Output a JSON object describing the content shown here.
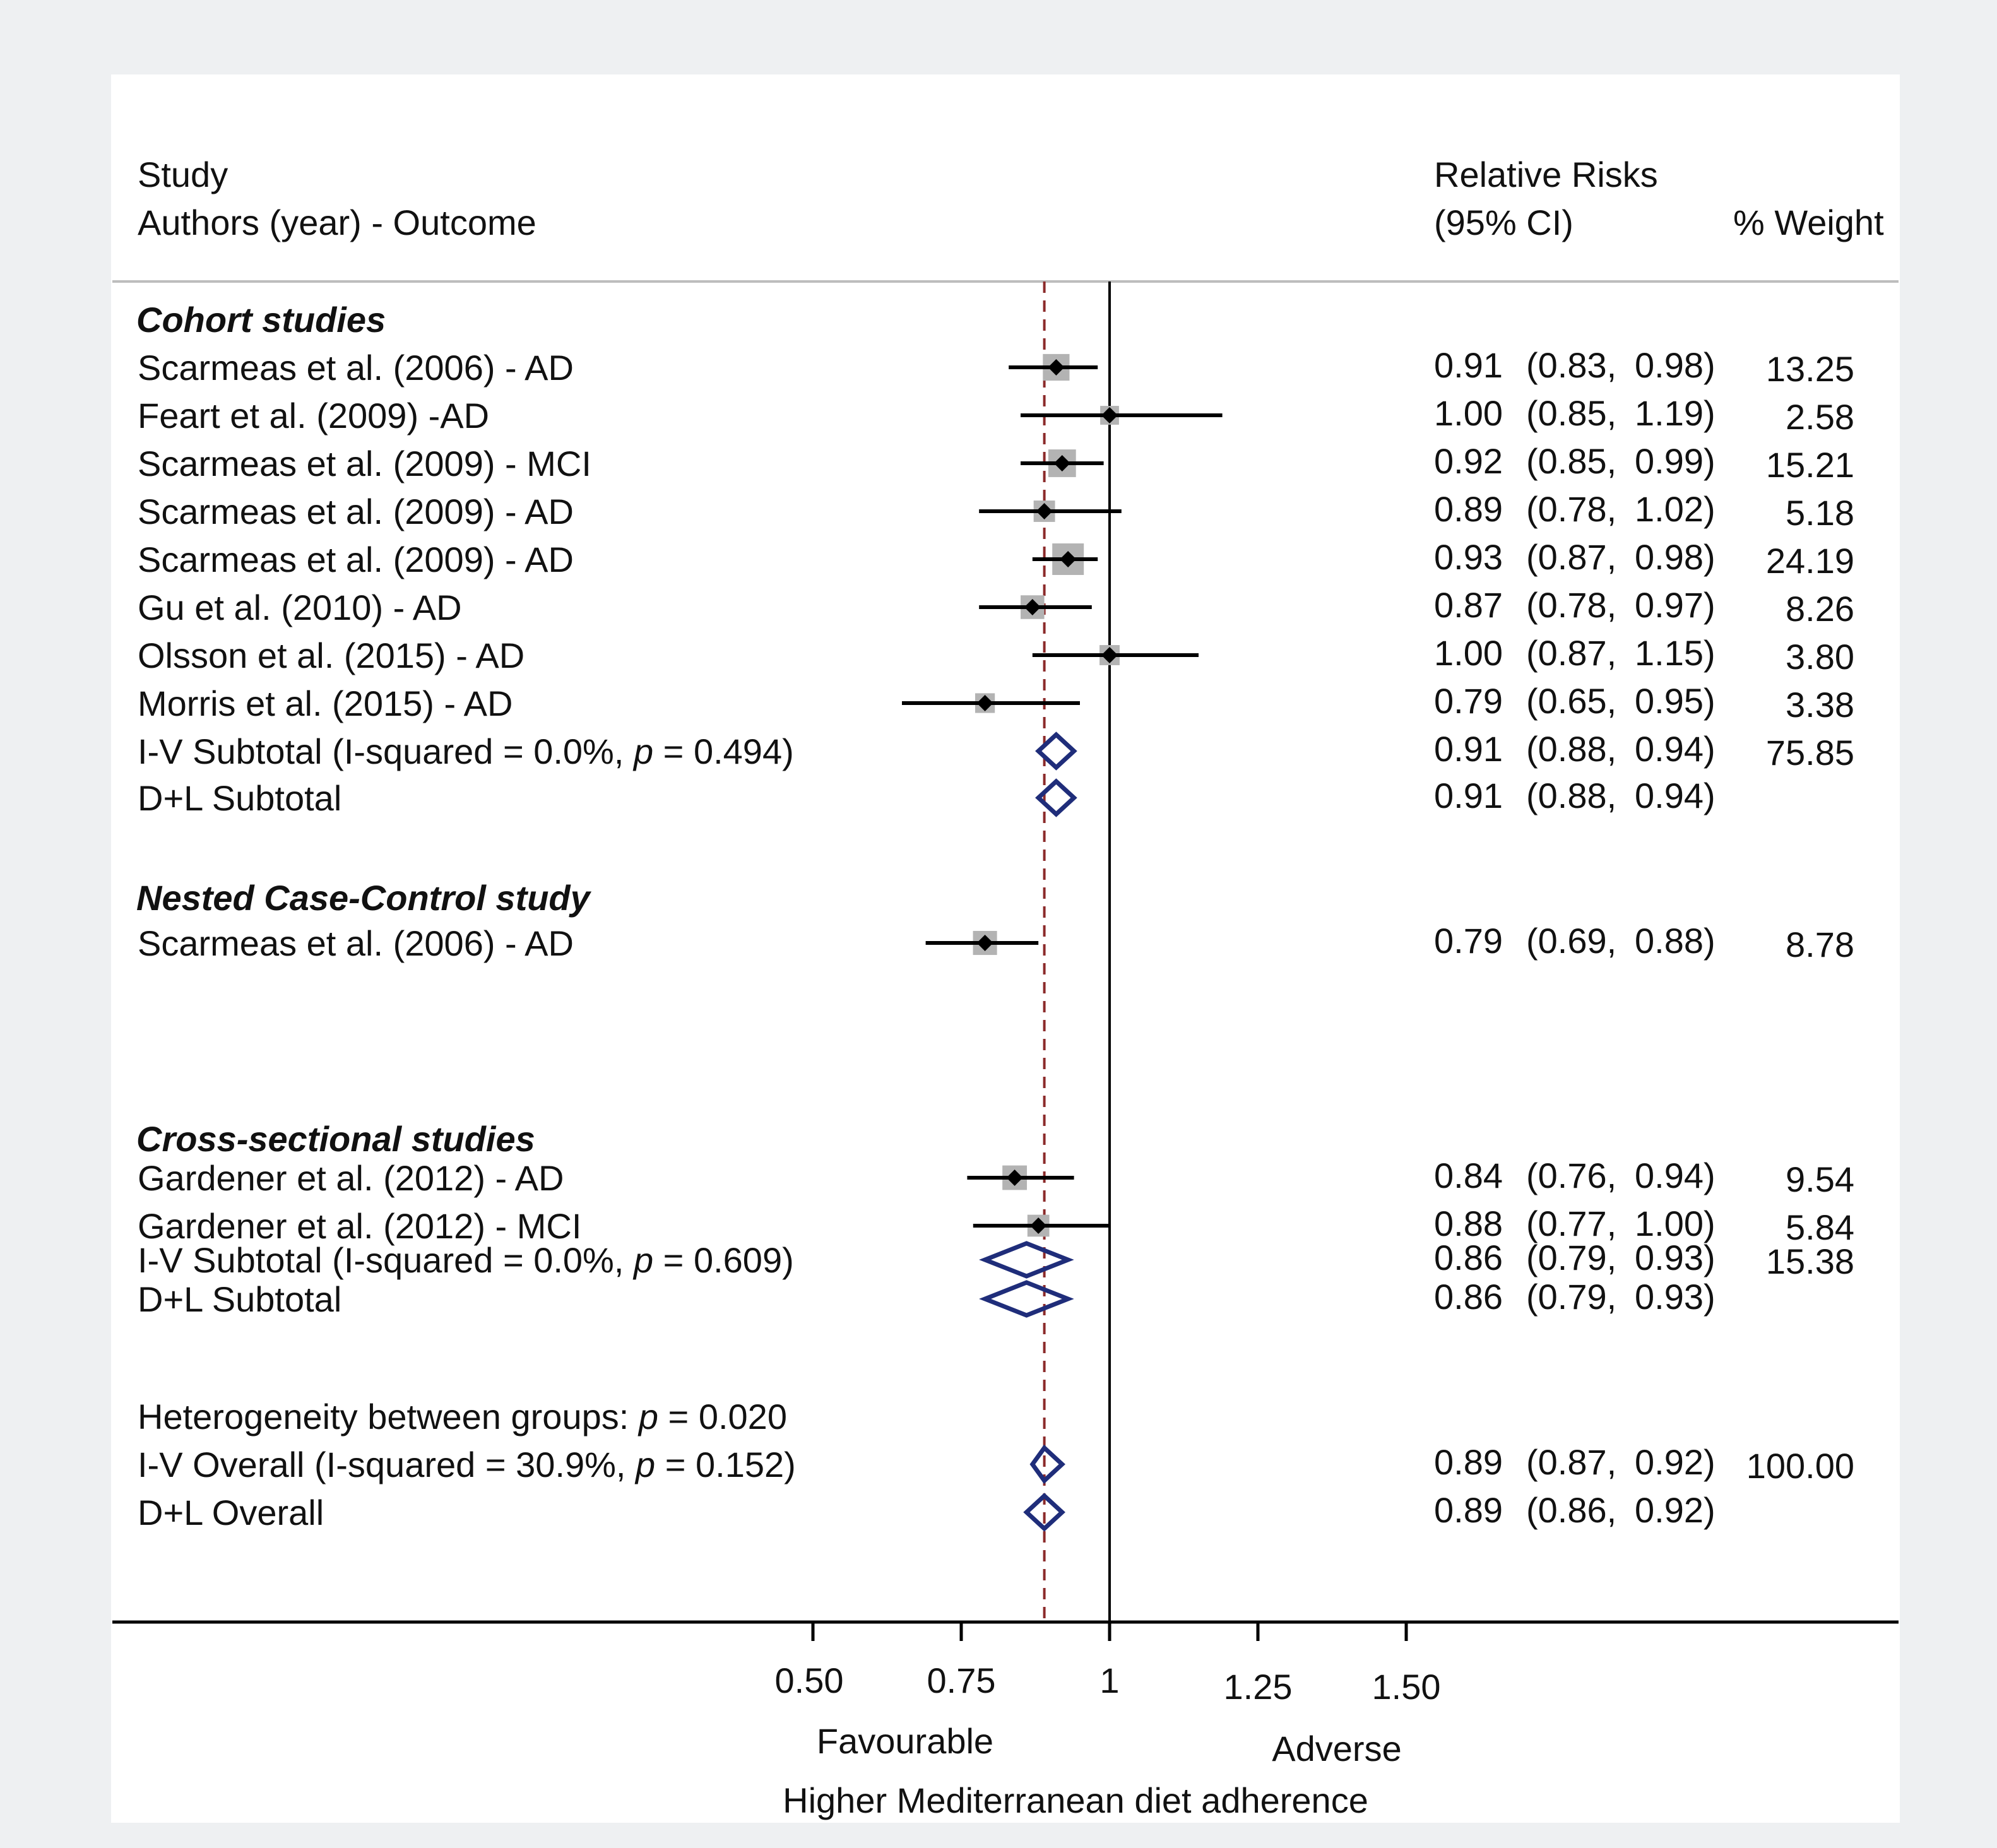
{
  "colors": {
    "point": "#000000",
    "box": "#b3b3b3",
    "diamond": "#1f2d7a",
    "ref_line": "#8b2a2a",
    "null_line": "#000000"
  },
  "header": {
    "study_col_line1": "Study",
    "study_col_line2": "Authors (year) - Outcome",
    "rr_col_line1": "Relative Risks",
    "rr_col_line2": "(95%  CI)",
    "weight_col": "%  Weight"
  },
  "chart_data": {
    "type": "forest",
    "measure": "Relative Risk",
    "null_value": 1,
    "reference_line": 0.89,
    "x_ticks": [
      0.5,
      0.75,
      1,
      1.25,
      1.5
    ],
    "x_tick_labels": [
      "0.50",
      "0.75",
      "1",
      "1.25",
      "1.50"
    ],
    "xlim": [
      0.5,
      1.5
    ],
    "favourable_label": "Favourable",
    "adverse_label": "Adverse",
    "xlabel": "Higher Mediterranean diet adherence",
    "rows": [
      {
        "kind": "section",
        "label": "Cohort studies"
      },
      {
        "kind": "study",
        "label": "Scarmeas et al. (2006) - AD",
        "rr": 0.91,
        "lo": 0.83,
        "hi": 0.98,
        "weight": 13.25,
        "rr_text": "0.91",
        "ci_lo_text": "(0.83,",
        "ci_hi_text": "0.98)",
        "weight_text": "13.25"
      },
      {
        "kind": "study",
        "label": "Feart et al. (2009) -AD",
        "rr": 1.0,
        "lo": 0.85,
        "hi": 1.19,
        "weight": 2.58,
        "rr_text": "1.00",
        "ci_lo_text": "(0.85,",
        "ci_hi_text": "1.19)",
        "weight_text": "2.58"
      },
      {
        "kind": "study",
        "label": "Scarmeas et al. (2009) - MCI",
        "rr": 0.92,
        "lo": 0.85,
        "hi": 0.99,
        "weight": 15.21,
        "rr_text": "0.92",
        "ci_lo_text": "(0.85,",
        "ci_hi_text": "0.99)",
        "weight_text": "15.21"
      },
      {
        "kind": "study",
        "label": "Scarmeas et al. (2009) - AD",
        "rr": 0.89,
        "lo": 0.78,
        "hi": 1.02,
        "weight": 5.18,
        "rr_text": "0.89",
        "ci_lo_text": "(0.78,",
        "ci_hi_text": "1.02)",
        "weight_text": "5.18"
      },
      {
        "kind": "study",
        "label": "Scarmeas et al. (2009) - AD",
        "rr": 0.93,
        "lo": 0.87,
        "hi": 0.98,
        "weight": 24.19,
        "rr_text": "0.93",
        "ci_lo_text": "(0.87,",
        "ci_hi_text": "0.98)",
        "weight_text": "24.19"
      },
      {
        "kind": "study",
        "label": "Gu et al. (2010) - AD",
        "rr": 0.87,
        "lo": 0.78,
        "hi": 0.97,
        "weight": 8.26,
        "rr_text": "0.87",
        "ci_lo_text": "(0.78,",
        "ci_hi_text": "0.97)",
        "weight_text": "8.26"
      },
      {
        "kind": "study",
        "label": "Olsson et al. (2015) - AD",
        "rr": 1.0,
        "lo": 0.87,
        "hi": 1.15,
        "weight": 3.8,
        "rr_text": "1.00",
        "ci_lo_text": "(0.87,",
        "ci_hi_text": "1.15)",
        "weight_text": "3.80"
      },
      {
        "kind": "study",
        "label": "Morris et al. (2015) - AD",
        "rr": 0.79,
        "lo": 0.65,
        "hi": 0.95,
        "weight": 3.38,
        "rr_text": "0.79",
        "ci_lo_text": "(0.65,",
        "ci_hi_text": "0.95)",
        "weight_text": "3.38"
      },
      {
        "kind": "pooled",
        "label_prefix": "I-V Subtotal  (I-squared = 0.0%, ",
        "label_p": "p",
        "label_suffix": " = 0.494)",
        "rr": 0.91,
        "lo": 0.88,
        "hi": 0.94,
        "weight": 75.85,
        "rr_text": "0.91",
        "ci_lo_text": "(0.88,",
        "ci_hi_text": "0.94)",
        "weight_text": "75.85"
      },
      {
        "kind": "pooled",
        "label": "D+L Subtotal",
        "rr": 0.91,
        "lo": 0.88,
        "hi": 0.94,
        "rr_text": "0.91",
        "ci_lo_text": "(0.88,",
        "ci_hi_text": "0.94)"
      },
      {
        "kind": "section",
        "label": "Nested Case-Control study"
      },
      {
        "kind": "study",
        "label": "Scarmeas et al. (2006) - AD",
        "rr": 0.79,
        "lo": 0.69,
        "hi": 0.88,
        "weight": 8.78,
        "rr_text": "0.79",
        "ci_lo_text": "(0.69,",
        "ci_hi_text": "0.88)",
        "weight_text": "8.78"
      },
      {
        "kind": "section",
        "label": "Cross-sectional studies"
      },
      {
        "kind": "study",
        "label": "Gardener et al. (2012) - AD",
        "rr": 0.84,
        "lo": 0.76,
        "hi": 0.94,
        "weight": 9.54,
        "rr_text": "0.84",
        "ci_lo_text": "(0.76,",
        "ci_hi_text": "0.94)",
        "weight_text": "9.54"
      },
      {
        "kind": "study",
        "label": "Gardener et al. (2012) - MCI",
        "rr": 0.88,
        "lo": 0.77,
        "hi": 1.0,
        "weight": 5.84,
        "rr_text": "0.88",
        "ci_lo_text": "(0.77,",
        "ci_hi_text": "1.00)",
        "weight_text": "5.84"
      },
      {
        "kind": "pooled",
        "label_prefix": "I-V Subtotal  (I-squared = 0.0%, ",
        "label_p": "p",
        "label_suffix": " = 0.609)",
        "rr": 0.86,
        "lo": 0.79,
        "hi": 0.93,
        "weight": 15.38,
        "rr_text": "0.86",
        "ci_lo_text": "(0.79,",
        "ci_hi_text": "0.93)",
        "weight_text": "15.38"
      },
      {
        "kind": "pooled",
        "label": "D+L Subtotal",
        "rr": 0.86,
        "lo": 0.79,
        "hi": 0.93,
        "rr_text": "0.86",
        "ci_lo_text": "(0.79,",
        "ci_hi_text": "0.93)"
      },
      {
        "kind": "text",
        "label_prefix": "Heterogeneity between groups: ",
        "label_p": "p",
        "label_suffix": " = 0.020"
      },
      {
        "kind": "pooled",
        "label_prefix": "I-V Overall  (I-squared = 30.9%, ",
        "label_p": "p",
        "label_suffix": " = 0.152)",
        "rr": 0.89,
        "lo": 0.87,
        "hi": 0.92,
        "weight": 100.0,
        "rr_text": "0.89",
        "ci_lo_text": "(0.87,",
        "ci_hi_text": "0.92)",
        "weight_text": "100.00"
      },
      {
        "kind": "pooled",
        "label": "D+L Overall",
        "rr": 0.89,
        "lo": 0.86,
        "hi": 0.92,
        "rr_text": "0.89",
        "ci_lo_text": "(0.86,",
        "ci_hi_text": "0.92)"
      }
    ]
  }
}
